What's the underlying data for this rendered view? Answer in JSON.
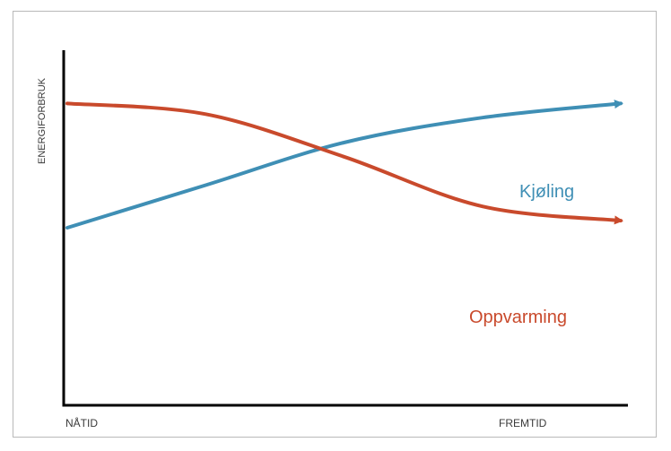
{
  "chart_data": {
    "type": "line",
    "title": "",
    "ylabel": "ENERGIFORBRUK",
    "xlabel": "",
    "x_tick_labels": [
      "NÅTID",
      "FREMTID"
    ],
    "xlim": [
      0,
      1
    ],
    "ylim": [
      0,
      1
    ],
    "series": [
      {
        "name": "Kjøling",
        "color": "#3f8fb5",
        "x": [
          0.0,
          0.25,
          0.5,
          0.75,
          1.0
        ],
        "y": [
          0.5,
          0.62,
          0.74,
          0.81,
          0.85
        ]
      },
      {
        "name": "Oppvarming",
        "color": "#c94a2c",
        "x": [
          0.0,
          0.25,
          0.5,
          0.75,
          1.0
        ],
        "y": [
          0.85,
          0.82,
          0.7,
          0.56,
          0.52
        ]
      }
    ]
  }
}
